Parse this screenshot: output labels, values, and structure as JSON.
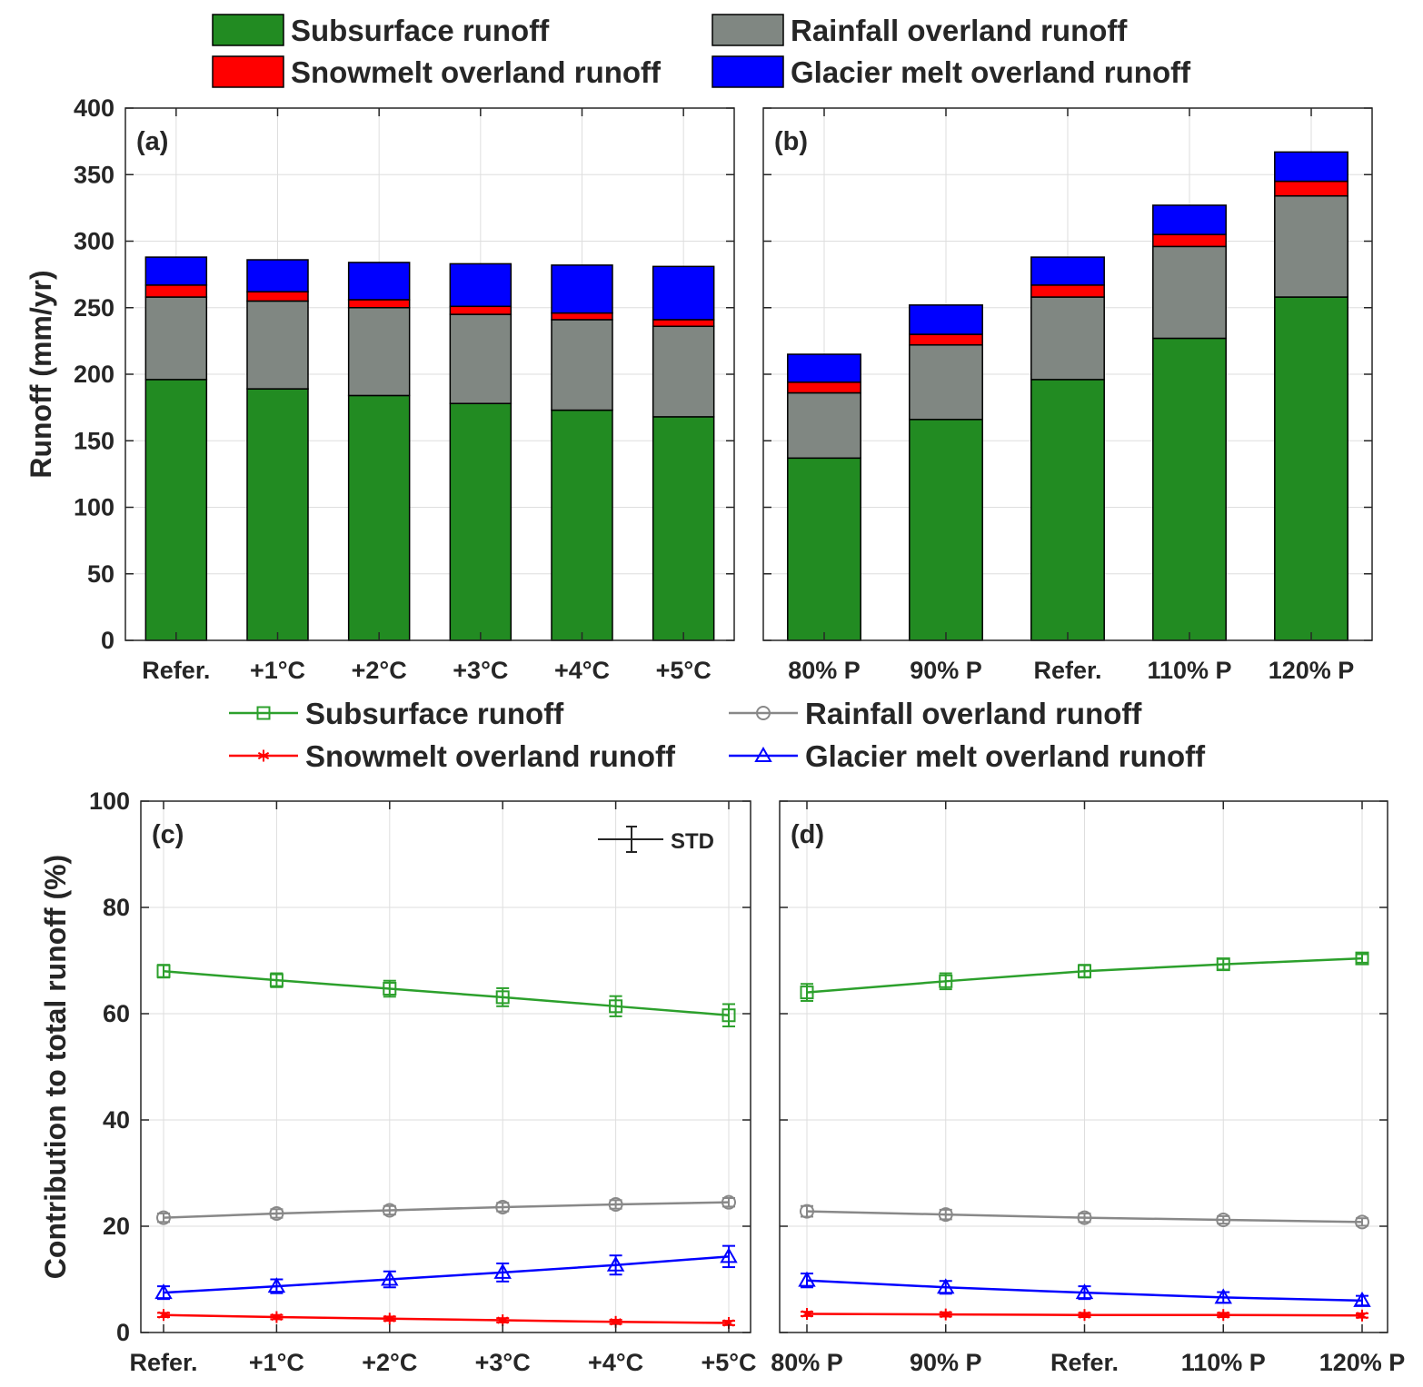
{
  "chart_data": [
    {
      "panel": "(a)",
      "type": "bar",
      "stacked": true,
      "categories": [
        "Refer.",
        "+1°C",
        "+2°C",
        "+3°C",
        "+4°C",
        "+5°C"
      ],
      "series": [
        {
          "name": "Subsurface runoff",
          "color": "#228b22",
          "values": [
            196,
            189,
            184,
            178,
            173,
            168
          ]
        },
        {
          "name": "Rainfall overland runoff",
          "color": "#808782",
          "values": [
            62,
            66,
            66,
            67,
            68,
            68
          ]
        },
        {
          "name": "Snowmelt overland runoff",
          "color": "#ff0000",
          "values": [
            9,
            7,
            6,
            6,
            5,
            5
          ]
        },
        {
          "name": "Glacier melt overland runoff",
          "color": "#0000ff",
          "values": [
            21,
            24,
            28,
            32,
            36,
            40
          ]
        }
      ],
      "ylabel": "Runoff (mm/yr)",
      "ylim": [
        0,
        400
      ],
      "yticks": [
        "0",
        "50",
        "100",
        "150",
        "200",
        "250",
        "300",
        "350",
        "400"
      ],
      "grid": true
    },
    {
      "panel": "(b)",
      "type": "bar",
      "stacked": true,
      "categories": [
        "80% P",
        "90% P",
        "Refer.",
        "110% P",
        "120% P"
      ],
      "series": [
        {
          "name": "Subsurface runoff",
          "color": "#228b22",
          "values": [
            137,
            166,
            196,
            227,
            258
          ]
        },
        {
          "name": "Rainfall overland runoff",
          "color": "#808782",
          "values": [
            49,
            56,
            62,
            69,
            76
          ]
        },
        {
          "name": "Snowmelt overland runoff",
          "color": "#ff0000",
          "values": [
            8,
            8,
            9,
            9,
            11
          ]
        },
        {
          "name": "Glacier melt overland runoff",
          "color": "#0000ff",
          "values": [
            21,
            22,
            21,
            22,
            22
          ]
        }
      ],
      "ylim": [
        0,
        400
      ],
      "grid": true
    },
    {
      "panel": "(c)",
      "type": "line",
      "categories": [
        "Refer.",
        "+1°C",
        "+2°C",
        "+3°C",
        "+4°C",
        "+5°C"
      ],
      "series": [
        {
          "name": "Subsurface runoff",
          "color": "#2ca02c",
          "marker": "square",
          "values": [
            68.0,
            66.3,
            64.7,
            63.1,
            61.4,
            59.7
          ],
          "std": [
            1.2,
            1.3,
            1.5,
            1.7,
            1.9,
            2.1
          ]
        },
        {
          "name": "Rainfall overland runoff",
          "color": "#888888",
          "marker": "circle",
          "values": [
            21.6,
            22.4,
            23.0,
            23.6,
            24.1,
            24.5
          ],
          "std": [
            0.8,
            0.8,
            0.8,
            0.8,
            0.8,
            0.8
          ]
        },
        {
          "name": "Snowmelt overland runoff",
          "color": "#ff0000",
          "marker": "star",
          "values": [
            3.3,
            2.9,
            2.6,
            2.3,
            2.0,
            1.8
          ],
          "std": [
            0.4,
            0.4,
            0.4,
            0.4,
            0.4,
            0.4
          ]
        },
        {
          "name": "Glacier melt overland runoff",
          "color": "#0000ff",
          "marker": "triangle",
          "values": [
            7.5,
            8.7,
            10.0,
            11.3,
            12.7,
            14.3
          ],
          "std": [
            1.2,
            1.3,
            1.5,
            1.7,
            1.8,
            2.0
          ]
        }
      ],
      "ylabel": "Contribution to total runoff (%)",
      "ylim": [
        0,
        100
      ],
      "yticks": [
        "0",
        "20",
        "40",
        "60",
        "80",
        "100"
      ],
      "annotation": "STD",
      "grid": true
    },
    {
      "panel": "(d)",
      "type": "line",
      "categories": [
        "80% P",
        "90% P",
        "Refer.",
        "110% P",
        "120% P"
      ],
      "series": [
        {
          "name": "Subsurface runoff",
          "color": "#2ca02c",
          "marker": "square",
          "values": [
            64.0,
            66.1,
            68.0,
            69.3,
            70.4
          ],
          "std": [
            1.6,
            1.5,
            1.2,
            1.0,
            0.8
          ]
        },
        {
          "name": "Rainfall overland runoff",
          "color": "#888888",
          "marker": "circle",
          "values": [
            22.8,
            22.2,
            21.6,
            21.2,
            20.8
          ],
          "std": [
            1.0,
            0.9,
            0.8,
            0.7,
            0.7
          ]
        },
        {
          "name": "Snowmelt overland runoff",
          "color": "#ff0000",
          "marker": "star",
          "values": [
            3.5,
            3.4,
            3.3,
            3.3,
            3.2
          ],
          "std": [
            0.4,
            0.4,
            0.4,
            0.4,
            0.4
          ]
        },
        {
          "name": "Glacier melt overland runoff",
          "color": "#0000ff",
          "marker": "triangle",
          "values": [
            9.8,
            8.5,
            7.5,
            6.6,
            6.0
          ],
          "std": [
            1.3,
            1.2,
            1.2,
            1.0,
            0.9
          ]
        }
      ],
      "ylim": [
        0,
        100
      ],
      "grid": true
    }
  ],
  "legend_top": [
    {
      "label": "Subsurface runoff",
      "color": "#228b22"
    },
    {
      "label": "Rainfall overland runoff",
      "color": "#808782"
    },
    {
      "label": "Snowmelt overland runoff",
      "color": "#ff0000"
    },
    {
      "label": "Glacier melt overland runoff",
      "color": "#0000ff"
    }
  ],
  "legend_bottom": [
    {
      "label": "Subsurface runoff",
      "color": "#2ca02c",
      "marker": "square"
    },
    {
      "label": "Rainfall overland runoff",
      "color": "#888888",
      "marker": "circle"
    },
    {
      "label": "Snowmelt overland runoff",
      "color": "#ff0000",
      "marker": "star"
    },
    {
      "label": "Glacier melt overland runoff",
      "color": "#0000ff",
      "marker": "triangle"
    }
  ]
}
